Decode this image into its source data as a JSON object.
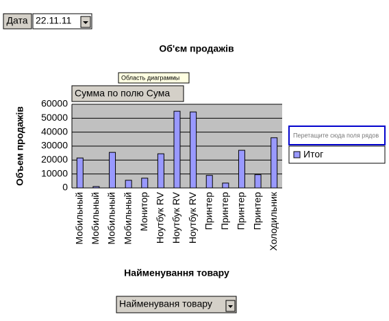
{
  "chart_data": {
    "type": "bar",
    "title": "Об'єм продажів",
    "page_field": "Дата",
    "page_value": "22.11.11",
    "tooltip": "Область диаграммы",
    "data_field": "Сумма по полю Сума",
    "series_drop_hint": "Перетащите сюда поля рядов",
    "row_field": "Найменуваня товару",
    "x_label": "Найменування товару",
    "y_label": "Объем продажів",
    "categories": [
      "Мобильный",
      "Мобильный",
      "Мобильный",
      "Мобильный",
      "Монитор",
      "Ноутбук  RV",
      "Ноутбук RV",
      "Ноутбук RV",
      "Принтер",
      "Принтер",
      "Принтер",
      "Принтер",
      "Холодильник"
    ],
    "series": [
      {
        "name": "Итог",
        "color": "#9999ff",
        "values": [
          21500,
          1000,
          25500,
          5500,
          7000,
          24500,
          55000,
          54500,
          9000,
          3500,
          27000,
          9500,
          36000
        ]
      }
    ],
    "ylim": [
      0,
      60000
    ],
    "yticks": [
      0,
      10000,
      20000,
      30000,
      40000,
      50000,
      60000
    ],
    "grid": true
  }
}
